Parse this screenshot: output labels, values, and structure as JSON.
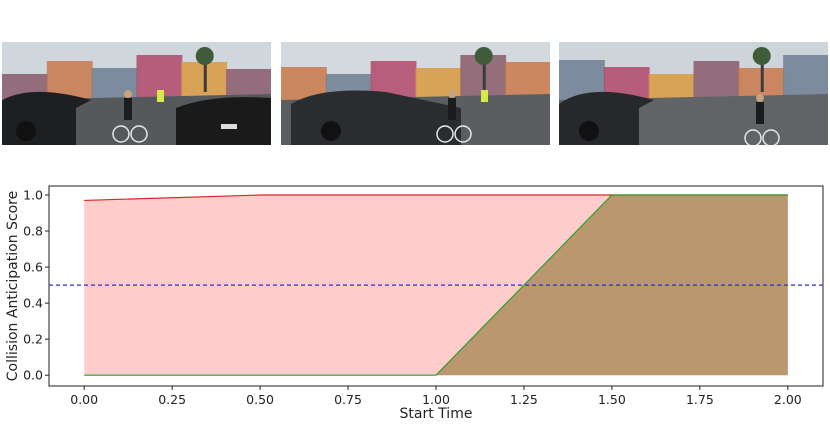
{
  "frames": [
    {
      "scene": "street-cyclists-left-car",
      "sky": "#cfd6dc",
      "road": "#55595c",
      "car": "#1e1f21"
    },
    {
      "scene": "street-dark-sedan-crossing",
      "sky": "#d4d9de",
      "road": "#5a5e61",
      "car": "#2a2c2f"
    },
    {
      "scene": "street-corner-cyclist-fallen",
      "sky": "#cdd4da",
      "road": "#606467",
      "car": "#26282b"
    }
  ],
  "chart_data": {
    "type": "area",
    "xlabel": "Start Time",
    "ylabel": "Collision Anticipation Score",
    "xlim": [
      -0.1,
      2.1
    ],
    "ylim": [
      -0.06,
      1.05
    ],
    "xticks": [
      "0.00",
      "0.25",
      "0.50",
      "0.75",
      "1.00",
      "1.25",
      "1.50",
      "1.75",
      "2.00"
    ],
    "yticks": [
      "0.0",
      "0.2",
      "0.4",
      "0.6",
      "0.8",
      "1.0"
    ],
    "threshold": 0.5,
    "grid": false,
    "series": [
      {
        "color": "#d62728",
        "fill": "#ff9a9a",
        "x": [
          0.0,
          0.5,
          1.0,
          1.5,
          2.0
        ],
        "y": [
          0.97,
          1.0,
          1.0,
          1.0,
          1.0
        ]
      },
      {
        "color": "#2ca02c",
        "fill": "#a3854f",
        "x": [
          0.0,
          0.5,
          1.0,
          1.5,
          2.0
        ],
        "y": [
          0.0,
          0.0,
          0.0,
          1.0,
          1.0
        ]
      }
    ],
    "threshold_color": "#2b2bd6"
  }
}
